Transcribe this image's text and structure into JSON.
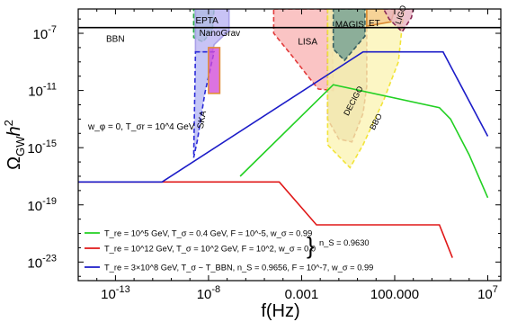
{
  "chart_data": {
    "type": "line",
    "title": "",
    "xlabel": "f(Hz)",
    "ylabel": "Ω_GW h²",
    "x_scale": "log",
    "y_scale": "log",
    "xlim_log10": [
      -15,
      7.7
    ],
    "ylim_log10": [
      -24.3,
      -5.3
    ],
    "x_ticks": [
      {
        "exp": -13,
        "label": "10",
        "sup": "-13"
      },
      {
        "exp": -8,
        "label": "10",
        "sup": "-8"
      },
      {
        "exp": -3,
        "label": "0.001",
        "sup": ""
      },
      {
        "exp": 2,
        "label": "100.000",
        "sup": ""
      },
      {
        "exp": 7,
        "label": "10",
        "sup": "7"
      }
    ],
    "y_ticks": [
      {
        "exp": -7,
        "label": "10",
        "sup": "-7"
      },
      {
        "exp": -11,
        "label": "10",
        "sup": "-11"
      },
      {
        "exp": -15,
        "label": "10",
        "sup": "-15"
      },
      {
        "exp": -19,
        "label": "10",
        "sup": "-19"
      },
      {
        "exp": -23,
        "label": "10",
        "sup": "-23"
      }
    ],
    "bbn": {
      "label": "BBN",
      "log10_omega": -6.6
    },
    "detectors": [
      {
        "name": "EPTA",
        "fill": "#8fdcb0",
        "stroke": "#2aa84a",
        "dashed": true,
        "outline": [
          [
            -8.8,
            -5.3
          ],
          [
            -7.7,
            -5.3
          ],
          [
            -7.8,
            -6.8
          ],
          [
            -8.3,
            -7.6
          ],
          [
            -8.8,
            -7.3
          ]
        ]
      },
      {
        "name": "NanoGrav",
        "fill": "#b9b2f2",
        "stroke": "#a9a0e8",
        "dashed": false,
        "outline": [
          [
            -8.7,
            -5.3
          ],
          [
            -6.9,
            -5.3
          ],
          [
            -6.9,
            -6.8
          ],
          [
            -7.7,
            -7.8
          ],
          [
            -7.8,
            -8.3
          ],
          [
            -8.7,
            -8.3
          ]
        ]
      },
      {
        "name": "SKA",
        "fill": "#b3b6f3",
        "stroke": "#2b2bd8",
        "dashed": true,
        "outline": [
          [
            -8.7,
            -8.3
          ],
          [
            -7.7,
            -8.3
          ],
          [
            -8.2,
            -11.2
          ],
          [
            -8.6,
            -14.5
          ],
          [
            -8.8,
            -15.7
          ]
        ]
      },
      {
        "name": "NanoGrav band",
        "fill": "#d24bd8",
        "stroke": "#e08a3a",
        "dashed": false,
        "outline": [
          [
            -8.0,
            -8.0
          ],
          [
            -7.4,
            -8.0
          ],
          [
            -7.4,
            -11.2
          ],
          [
            -8.0,
            -11.2
          ]
        ]
      },
      {
        "name": "LISA",
        "fill": "#f8b3b3",
        "stroke": "#e23b3b",
        "dashed": true,
        "outline": [
          [
            -4.5,
            -5.3
          ],
          [
            -1.4,
            -5.3
          ],
          [
            -1.3,
            -11.0
          ],
          [
            -2.1,
            -10.9
          ],
          [
            -2.6,
            -10.1
          ],
          [
            -3.5,
            -8.6
          ],
          [
            -4.5,
            -7.0
          ]
        ]
      },
      {
        "name": "DECIGO",
        "fill": "#c9b49a",
        "stroke": "#b03820",
        "dashed": true,
        "outline": [
          [
            -1.6,
            -5.3
          ],
          [
            0.5,
            -5.3
          ],
          [
            0.5,
            -10.7
          ],
          [
            0.3,
            -12.6
          ],
          [
            -0.3,
            -14.6
          ],
          [
            -1.0,
            -14.4
          ],
          [
            -1.6,
            -13.0
          ]
        ]
      },
      {
        "name": "BBO",
        "fill": "#fbf3b3",
        "stroke": "#f2e43a",
        "dashed": true,
        "outline": [
          [
            -1.6,
            -5.3
          ],
          [
            2.5,
            -5.3
          ],
          [
            2.2,
            -9.0
          ],
          [
            1.4,
            -11.7
          ],
          [
            0.3,
            -14.8
          ],
          [
            -0.4,
            -16.4
          ],
          [
            -1.6,
            -14.8
          ]
        ]
      },
      {
        "name": "MAGIS",
        "fill": "#6e9e92",
        "stroke": "#3a6060",
        "dashed": true,
        "outline": [
          [
            -1.3,
            -5.3
          ],
          [
            0.4,
            -5.3
          ],
          [
            0.4,
            -7.2
          ],
          [
            -0.7,
            -8.9
          ],
          [
            -1.3,
            -8.1
          ]
        ]
      },
      {
        "name": "ET",
        "fill": "#f3c98a",
        "stroke": "#d98a30",
        "dashed": false,
        "outline": [
          [
            0.5,
            -5.3
          ],
          [
            2.0,
            -5.3
          ],
          [
            1.8,
            -6.2
          ],
          [
            0.5,
            -6.5
          ]
        ]
      },
      {
        "name": "LIGO",
        "fill": "#e8b3c2",
        "stroke": "#8a2a55",
        "dashed": true,
        "outline": [
          [
            1.4,
            -5.3
          ],
          [
            3.0,
            -5.3
          ],
          [
            2.9,
            -5.9
          ],
          [
            2.4,
            -6.9
          ],
          [
            1.7,
            -6.0
          ]
        ]
      }
    ],
    "series": [
      {
        "name": "T_re = 10^5 GeV, T_σ = 0.4 GeV, F = 10^-5, w_σ = 0.99",
        "color": "#22d022",
        "x": [
          -6.3,
          -1.3,
          4.4,
          5.0,
          6.0,
          7.0
        ],
        "y": [
          -17.0,
          -10.6,
          -12.2,
          -13.0,
          -15.5,
          -18.5
        ]
      },
      {
        "name": "T_re = 10^12 GeV, T_σ = 10^2 GeV, F = 10^2, w_σ = 0.0",
        "color": "#e01818",
        "x": [
          -15.0,
          -4.2,
          -2.2,
          4.4,
          5.1
        ],
        "y": [
          -17.4,
          -17.4,
          -20.4,
          -20.4,
          -22.7
        ]
      },
      {
        "name": "T_re = 3×10^8 GeV, T_σ ~ T_BBN, n_S = 0.9656, F = 10^-7, w_σ = 0.99",
        "color": "#1c1cc8",
        "x": [
          -15.0,
          -10.5,
          0.3,
          4.6,
          7.0
        ],
        "y": [
          -17.4,
          -17.4,
          -8.3,
          -8.3,
          -14.2
        ]
      }
    ],
    "legend_position": "bottom-left",
    "legend_shared_note": "n_S = 0.9630",
    "annotations": [
      {
        "text": "w_φ = 0,  T_σr = 10^4 GeV"
      }
    ]
  }
}
